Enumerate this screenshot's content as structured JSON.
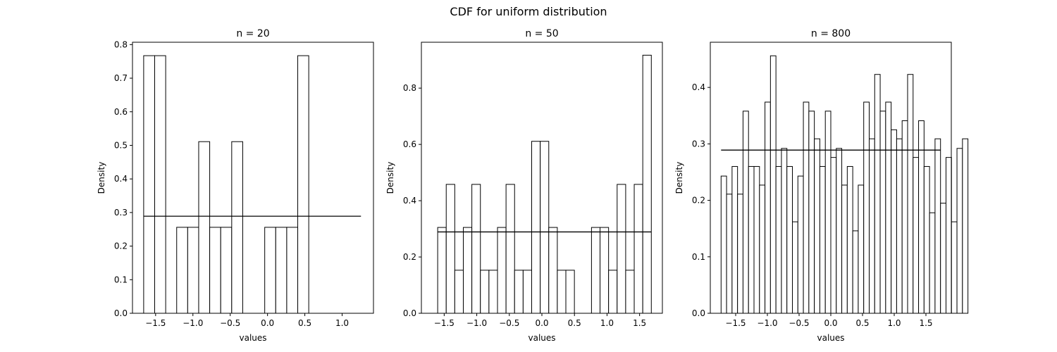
{
  "suptitle": "CDF for uniform distribution",
  "chart_data": [
    {
      "type": "bar",
      "title": "n = 20",
      "xlabel": "values",
      "ylabel": "Density",
      "xlim": [
        -1.81,
        1.42
      ],
      "ylim": [
        0,
        0.807
      ],
      "xticks": [
        -1.5,
        -1.0,
        -0.5,
        0.0,
        0.5,
        1.0
      ],
      "yticks": [
        0.0,
        0.1,
        0.2,
        0.3,
        0.4,
        0.5,
        0.6,
        0.7,
        0.8
      ],
      "bin_start": -1.66,
      "bin_width": 0.1475,
      "values": [
        0.767,
        0.767,
        0,
        0.256,
        0.256,
        0.511,
        0.256,
        0.256,
        0.511,
        0,
        0,
        0.256,
        0.256,
        0.256,
        0.767
      ],
      "reference_line": {
        "y": 0.289,
        "x": [
          -1.66,
          1.2525
        ]
      },
      "grid": false
    },
    {
      "type": "bar",
      "title": "n = 50",
      "xlabel": "values",
      "ylabel": "Density",
      "xlim": [
        -1.85,
        1.85
      ],
      "ylim": [
        0,
        0.963
      ],
      "xticks": [
        -1.5,
        -1.0,
        -0.5,
        0.0,
        0.5,
        1.0,
        1.5
      ],
      "yticks": [
        0.0,
        0.2,
        0.4,
        0.6,
        0.8
      ],
      "bin_start": -1.6,
      "bin_width": 0.1312,
      "values": [
        0.305,
        0.458,
        0.153,
        0.305,
        0.458,
        0.153,
        0.153,
        0.305,
        0.458,
        0.153,
        0.153,
        0.611,
        0.611,
        0.305,
        0.153,
        0.153,
        0,
        0,
        0.305,
        0.305,
        0.153,
        0.458,
        0.153,
        0.458,
        0.917
      ],
      "reference_line": {
        "y": 0.289,
        "x": [
          -1.6,
          1.68
        ]
      },
      "grid": false
    },
    {
      "type": "bar",
      "title": "n = 800",
      "xlabel": "values",
      "ylabel": "Density",
      "xlim": [
        -1.9,
        1.9
      ],
      "ylim": [
        0,
        0.48
      ],
      "xticks": [
        -1.5,
        -1.0,
        -0.5,
        0.0,
        0.5,
        1.0,
        1.5
      ],
      "yticks": [
        0.0,
        0.1,
        0.2,
        0.3,
        0.4
      ],
      "bin_start": -1.73,
      "bin_width": 0.0865,
      "values": [
        0.243,
        0.211,
        0.26,
        0.211,
        0.358,
        0.26,
        0.26,
        0.227,
        0.374,
        0.456,
        0.26,
        0.292,
        0.26,
        0.162,
        0.243,
        0.374,
        0.358,
        0.309,
        0.26,
        0.358,
        0.276,
        0.292,
        0.227,
        0.26,
        0.146,
        0.227,
        0.374,
        0.309,
        0.423,
        0.358,
        0.374,
        0.325,
        0.309,
        0.341,
        0.423,
        0.276,
        0.341,
        0.26,
        0.178,
        0.309,
        0.195,
        0.276,
        0.162,
        0.292,
        0.309
      ],
      "reference_line": {
        "y": 0.289,
        "x": [
          -1.73,
          1.73
        ]
      },
      "grid": false
    }
  ]
}
